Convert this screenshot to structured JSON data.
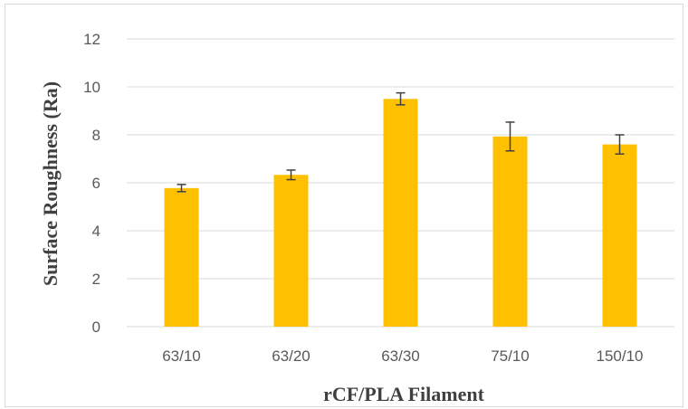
{
  "chart_data": {
    "type": "bar",
    "title": "",
    "xlabel": "rCF/PLA Filament",
    "ylabel": "Surface Roughness (Ra)",
    "categories": [
      "63/10",
      "63/20",
      "63/30",
      "75/10",
      "150/10"
    ],
    "values": [
      5.78,
      6.33,
      9.5,
      7.93,
      7.6
    ],
    "errors": [
      0.15,
      0.2,
      0.25,
      0.6,
      0.4
    ],
    "ylim": [
      0,
      12
    ],
    "yticks": [
      "0",
      "2",
      "4",
      "6",
      "8",
      "10",
      "12"
    ],
    "grid": true,
    "legend": "none",
    "bar_color": "#FFC000",
    "grid_color": "#d9d9d9",
    "error_bar_color": "#404040"
  }
}
